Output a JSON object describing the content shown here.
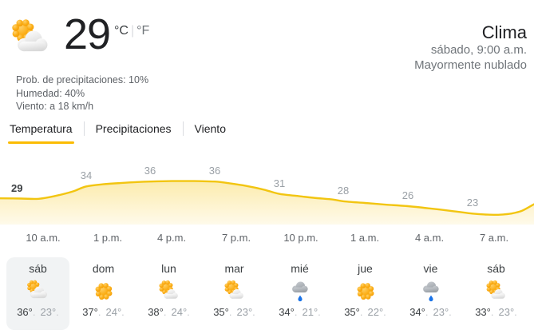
{
  "header": {
    "current_temp": "29",
    "unit_celsius": "°C",
    "unit_divider": "|",
    "unit_fahrenheit": "°F",
    "condition_icon": "mostly-cloudy",
    "stats": [
      "Prob. de precipitaciones: 10%",
      "Humedad: 40%",
      "Viento: a 18 km/h"
    ],
    "title": "Clima",
    "subtitle_datetime": "sábado, 9:00 a.m.",
    "subtitle_condition": "Mayormente nublado"
  },
  "tabs": [
    {
      "label": "Temperatura",
      "active": true
    },
    {
      "label": "Precipitaciones",
      "active": false
    },
    {
      "label": "Viento",
      "active": false
    }
  ],
  "chart_data": {
    "type": "area",
    "title": "Temperatura",
    "unit": "°C",
    "x_ticks": [
      "10 a.m.",
      "1 p.m.",
      "4 p.m.",
      "7 p.m.",
      "10 p.m.",
      "1 a.m.",
      "4 a.m.",
      "7 a.m."
    ],
    "point_labels": [
      29,
      34,
      36,
      36,
      31,
      28,
      26,
      23
    ],
    "hourly": [
      [
        0,
        29.2
      ],
      [
        1,
        29.1
      ],
      [
        1.8,
        29
      ],
      [
        2.6,
        30.2
      ],
      [
        3.4,
        32
      ],
      [
        4,
        34
      ],
      [
        4.8,
        34.9
      ],
      [
        5.6,
        35.4
      ],
      [
        6.4,
        35.8
      ],
      [
        7,
        36
      ],
      [
        8,
        36.2
      ],
      [
        9,
        36.2
      ],
      [
        10,
        36
      ],
      [
        10.7,
        35.3
      ],
      [
        11.5,
        34.2
      ],
      [
        12.3,
        32.7
      ],
      [
        13,
        31
      ],
      [
        13.8,
        30.2
      ],
      [
        14.6,
        29.4
      ],
      [
        15.5,
        28.7
      ],
      [
        16,
        28
      ],
      [
        17,
        27.3
      ],
      [
        18,
        26.6
      ],
      [
        19,
        26
      ],
      [
        20,
        25.1
      ],
      [
        21,
        24.1
      ],
      [
        22,
        23
      ],
      [
        22.6,
        22.6
      ],
      [
        23.2,
        22.5
      ],
      [
        23.8,
        23
      ],
      [
        24.3,
        24.1
      ],
      [
        24.9,
        26.8
      ]
    ],
    "ylim": [
      21,
      38
    ],
    "grid": false,
    "legend": "none",
    "line_color": "#F2C511",
    "fill_top": "rgba(248,206,50,0.40)",
    "fill_bottom": "rgba(248,206,50,0.10)",
    "first_label_color": "#3C4043",
    "label_color": "#9AA0A6",
    "tick_color": "#5F6368"
  },
  "forecast": {
    "dot": ".",
    "days": [
      {
        "day": "sáb",
        "icon": "mostly-cloudy",
        "hi": "36°",
        "lo": "23°",
        "selected": true
      },
      {
        "day": "dom",
        "icon": "sunny",
        "hi": "37°",
        "lo": "24°",
        "selected": false
      },
      {
        "day": "lun",
        "icon": "partly-cloudy",
        "hi": "38°",
        "lo": "24°",
        "selected": false
      },
      {
        "day": "mar",
        "icon": "partly-cloudy",
        "hi": "35°",
        "lo": "23°",
        "selected": false
      },
      {
        "day": "mié",
        "icon": "rain",
        "hi": "34°",
        "lo": "21°",
        "selected": false
      },
      {
        "day": "jue",
        "icon": "sunny",
        "hi": "35°",
        "lo": "22°",
        "selected": false
      },
      {
        "day": "vie",
        "icon": "rain",
        "hi": "34°",
        "lo": "23°",
        "selected": false
      },
      {
        "day": "sáb",
        "icon": "partly-cloudy",
        "hi": "33°",
        "lo": "23°",
        "selected": false
      }
    ]
  }
}
